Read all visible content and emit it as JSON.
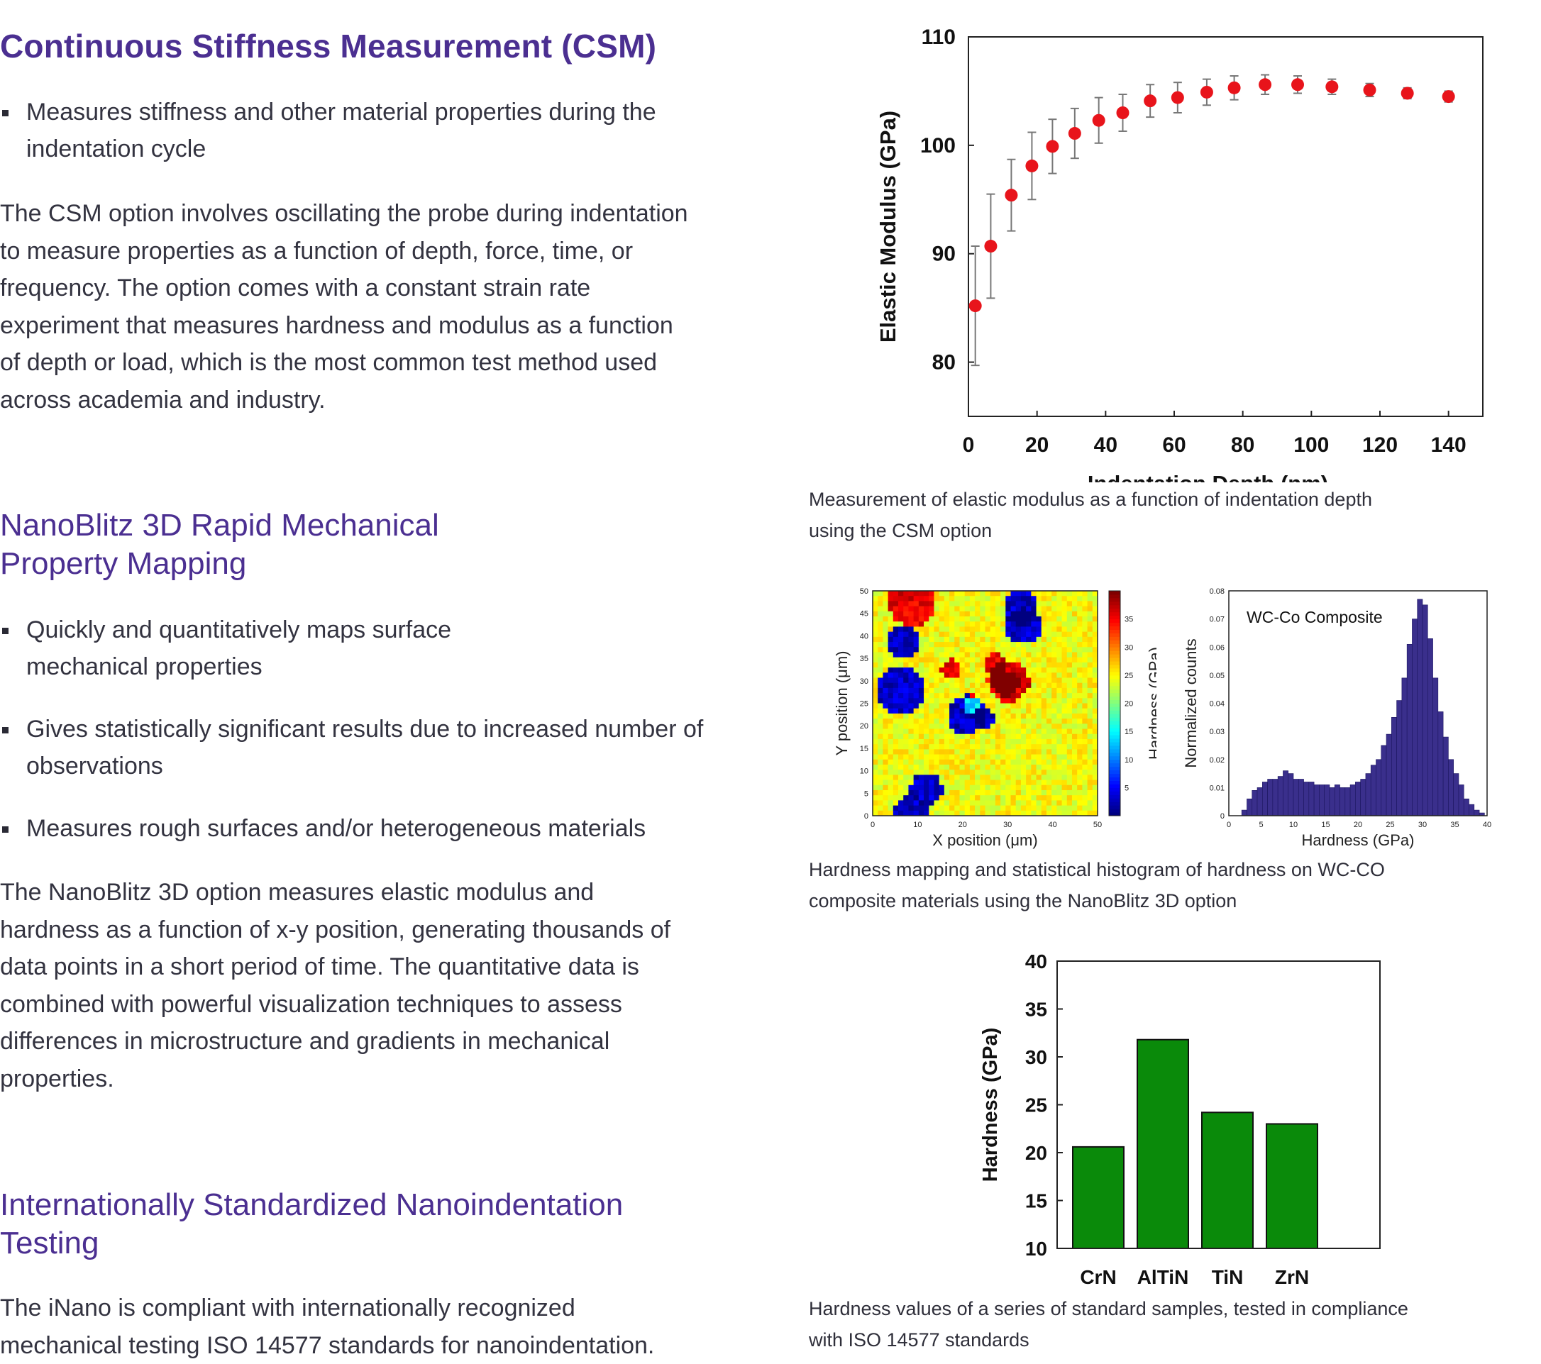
{
  "csm": {
    "heading": "Continuous Stiffness Measurement (CSM)",
    "bullets": [
      "Measures stiffness and other material properties during the indentation cycle"
    ],
    "body_lines": [
      "The CSM option involves oscillating the probe during indentation",
      "to measure properties as a function of depth, force, time, or",
      "frequency. The option comes with a constant strain rate",
      "experiment that measures hardness and modulus as a function",
      "of depth or load, which is the most common test method used",
      "across academia and industry."
    ]
  },
  "nanoblitz": {
    "heading_lines": [
      "NanoBlitz 3D Rapid Mechanical",
      "Property Mapping"
    ],
    "bullets": [
      "Quickly and quantitatively maps surface mechanical properties",
      "Gives statistically significant results due to increased number of observations",
      "Measures rough surfaces and/or heterogeneous materials"
    ],
    "body_lines": [
      "The NanoBlitz 3D option measures elastic modulus and",
      "hardness as a function of x-y position, generating thousands of",
      "data points in a short period of time. The quantitative data is",
      "combined with powerful visualization techniques to assess",
      "differences in microstructure and gradients in mechanical",
      "properties."
    ]
  },
  "iso": {
    "heading_lines": [
      "Internationally Standardized Nanoindentation",
      "Testing"
    ],
    "body_lines": [
      "The iNano is compliant with internationally recognized",
      "mechanical testing ISO 14577 standards for nanoindentation."
    ]
  },
  "captions": {
    "modulus": [
      "Measurement of elastic modulus as a function of indentation depth",
      "using the CSM option"
    ],
    "mapping": [
      "Hardness mapping and statistical histogram of hardness on WC-CO",
      "composite materials using the NanoBlitz 3D option"
    ],
    "bars": [
      "Hardness values of a series of standard samples, tested in compliance",
      "with ISO 14577 standards"
    ]
  },
  "colors": {
    "heading": "#4b2f91",
    "marker": "#e8141b",
    "bar": "#0a8a0a",
    "hist": "#3a2f8c"
  },
  "chart_data": [
    {
      "type": "scatter",
      "title": "",
      "xlabel": "Indentation Depth (nm)",
      "ylabel": "Elastic Modulus (GPa)",
      "xlim": [
        0,
        150
      ],
      "ylim": [
        75,
        110
      ],
      "xticks": [
        0,
        20,
        40,
        60,
        80,
        100,
        120,
        140
      ],
      "yticks": [
        80,
        90,
        100,
        110
      ],
      "grid": false,
      "points": [
        {
          "x": 2,
          "y": 85.2,
          "err": 5.5
        },
        {
          "x": 6.5,
          "y": 90.7,
          "err": 4.8
        },
        {
          "x": 12.5,
          "y": 95.4,
          "err": 3.3
        },
        {
          "x": 18.5,
          "y": 98.1,
          "err": 3.1
        },
        {
          "x": 24.5,
          "y": 99.9,
          "err": 2.5
        },
        {
          "x": 31,
          "y": 101.1,
          "err": 2.3
        },
        {
          "x": 38,
          "y": 102.3,
          "err": 2.1
        },
        {
          "x": 45,
          "y": 103.0,
          "err": 1.7
        },
        {
          "x": 53,
          "y": 104.1,
          "err": 1.5
        },
        {
          "x": 61,
          "y": 104.4,
          "err": 1.4
        },
        {
          "x": 69.5,
          "y": 104.9,
          "err": 1.2
        },
        {
          "x": 77.5,
          "y": 105.3,
          "err": 1.1
        },
        {
          "x": 86.5,
          "y": 105.6,
          "err": 0.9
        },
        {
          "x": 96,
          "y": 105.6,
          "err": 0.8
        },
        {
          "x": 106,
          "y": 105.4,
          "err": 0.7
        },
        {
          "x": 117,
          "y": 105.1,
          "err": 0.6
        },
        {
          "x": 128,
          "y": 104.8,
          "err": 0.5
        },
        {
          "x": 140,
          "y": 104.5,
          "err": 0.5
        }
      ]
    },
    {
      "type": "heatmap",
      "title": "",
      "xlabel": "X position (μm)",
      "ylabel": "Y position (μm)",
      "colorbar_label": "Hardness (GPa)",
      "xlim": [
        0,
        50
      ],
      "ylim": [
        0,
        50
      ],
      "xticks": [
        0,
        10,
        20,
        30,
        40,
        50
      ],
      "yticks": [
        0,
        5,
        10,
        15,
        20,
        25,
        30,
        35,
        40,
        45,
        50
      ],
      "colorbar_ticks": [
        5,
        10,
        15,
        20,
        25,
        30,
        35
      ],
      "colorbar_range": [
        0,
        40
      ]
    },
    {
      "type": "bar",
      "title": "",
      "annotation": "WC-Co Composite",
      "xlabel": "Hardness (GPa)",
      "ylabel": "Normalized counts",
      "xlim": [
        0,
        40
      ],
      "ylim": [
        0,
        0.08
      ],
      "xticks": [
        0,
        5,
        10,
        15,
        20,
        25,
        30,
        35,
        40
      ],
      "yticks": [
        0,
        0.01,
        0.02,
        0.03,
        0.04,
        0.05,
        0.06,
        0.07,
        0.08
      ],
      "bin_width": 0.8,
      "bin_start": 2.0,
      "values": [
        0.002,
        0.006,
        0.009,
        0.01,
        0.012,
        0.013,
        0.013,
        0.014,
        0.016,
        0.015,
        0.013,
        0.013,
        0.012,
        0.012,
        0.011,
        0.011,
        0.011,
        0.01,
        0.011,
        0.01,
        0.01,
        0.011,
        0.012,
        0.013,
        0.015,
        0.018,
        0.02,
        0.025,
        0.029,
        0.035,
        0.041,
        0.049,
        0.061,
        0.07,
        0.077,
        0.075,
        0.063,
        0.049,
        0.037,
        0.028,
        0.02,
        0.015,
        0.011,
        0.006,
        0.004,
        0.002,
        0.001
      ]
    },
    {
      "type": "bar",
      "title": "",
      "xlabel": "",
      "ylabel": "Hardness (GPa)",
      "ylim": [
        10,
        40
      ],
      "yticks": [
        10,
        15,
        20,
        25,
        30,
        35,
        40
      ],
      "categories": [
        "CrN",
        "AlTiN",
        "TiN",
        "ZrN"
      ],
      "values": [
        20.6,
        31.8,
        24.2,
        23.0
      ]
    }
  ]
}
